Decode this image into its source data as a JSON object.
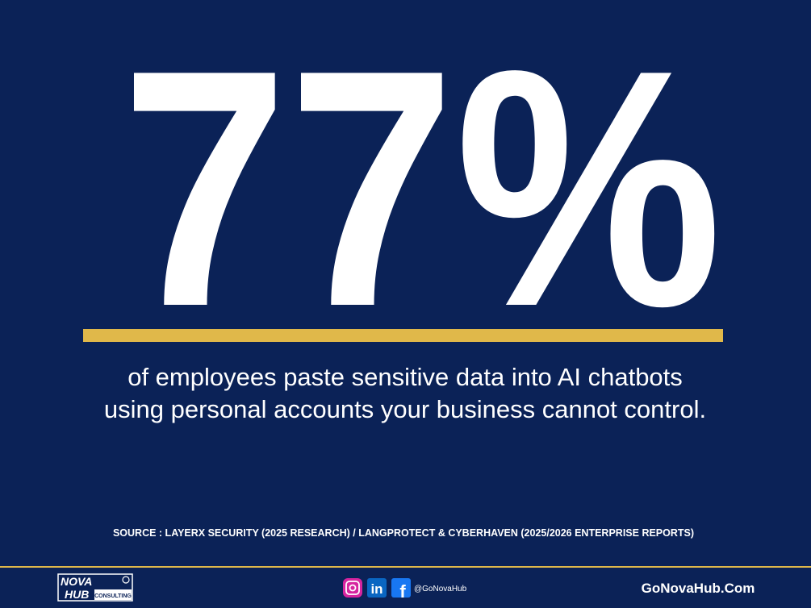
{
  "headline": {
    "stat": "77%",
    "lines": [
      "of employees paste sensitive data into AI chatbots",
      "using personal accounts your business cannot control."
    ]
  },
  "source": "SOURCE : LAYERX SECURITY (2025 RESEARCH) / LANGPROTECT & CYBERHAVEN (2025/2026 ENTERPRISE REPORTS)",
  "footer": {
    "logo": {
      "line1": "NOVA",
      "line2": "HUB",
      "tag": "CONSULTING"
    },
    "social_icons": {
      "linkedin": "in",
      "facebook": "f"
    },
    "handle": "@GoNovaHub",
    "website": "GoNovaHub.Com"
  }
}
